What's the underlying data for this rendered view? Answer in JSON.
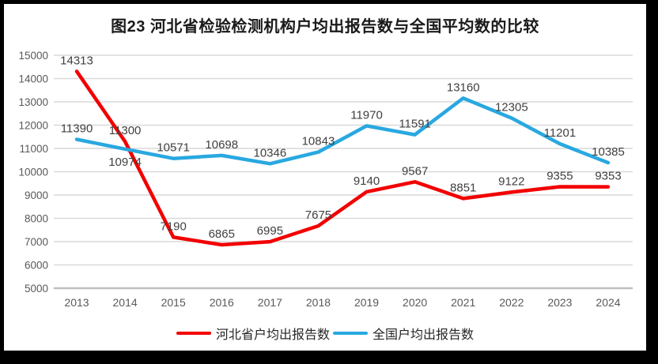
{
  "title": "图23  河北省检验检测机构户均出报告数与全国平均数的比较",
  "chart_data": {
    "type": "line",
    "x": [
      "2013",
      "2014",
      "2015",
      "2016",
      "2017",
      "2018",
      "2019",
      "2020",
      "2021",
      "2022",
      "2023",
      "2024"
    ],
    "series": [
      {
        "name": "河北省户均出报告数",
        "color": "#f20000",
        "values": [
          14313,
          11300,
          7190,
          6865,
          6995,
          7675,
          9140,
          9567,
          8851,
          9122,
          9355,
          9353
        ]
      },
      {
        "name": "全国户均出报告数",
        "color": "#29a8e0",
        "values": [
          11390,
          10974,
          10571,
          10698,
          10346,
          10843,
          11970,
          11591,
          13160,
          12305,
          11201,
          10385
        ]
      }
    ],
    "ylim": [
      5000,
      15000
    ],
    "ytick_step": 1000,
    "yticks": [
      5000,
      6000,
      7000,
      8000,
      9000,
      10000,
      11000,
      12000,
      13000,
      14000,
      15000
    ],
    "grid": true,
    "data_labels": true,
    "legend_position": "bottom",
    "label_below_points": [
      [
        1,
        1
      ]
    ]
  },
  "colors": {
    "frame": "#000000",
    "chart_bg": "#ffffff",
    "grid": "#d9d9d9",
    "axis": "#bfbfbf",
    "tick_text": "#595959",
    "data_label": "#404040",
    "title_text": "#1a1a1a",
    "legend_text": "#262626"
  }
}
